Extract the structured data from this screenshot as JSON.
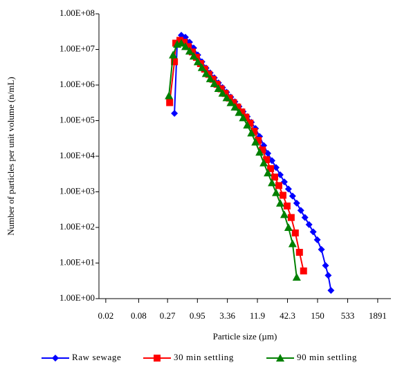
{
  "chart_data": {
    "type": "line",
    "xlabel": "Particle size (µm)",
    "ylabel": "Number of particles per unit volume (n/mL)",
    "xscale": "log",
    "yscale": "log",
    "xlim": [
      0.015,
      3300
    ],
    "ylim": [
      1,
      100000000
    ],
    "xticks": [
      0.02,
      0.08,
      0.27,
      0.95,
      3.36,
      11.9,
      42.3,
      150,
      533,
      1891
    ],
    "yticks": [
      {
        "value": 1,
        "label": "1.00E+00"
      },
      {
        "value": 10,
        "label": "1.00E+01"
      },
      {
        "value": 100,
        "label": "1.00E+02"
      },
      {
        "value": 1000,
        "label": "1.00E+03"
      },
      {
        "value": 10000,
        "label": "1.00E+04"
      },
      {
        "value": 100000,
        "label": "1.00E+05"
      },
      {
        "value": 1000000,
        "label": "1.00E+06"
      },
      {
        "value": 10000000,
        "label": "1.00E+07"
      },
      {
        "value": 100000000,
        "label": "1.00E+08"
      }
    ],
    "legend": "bottom",
    "series": [
      {
        "name": "Raw sewage",
        "color": "#0000ff",
        "marker": "diamond",
        "x": [
          0.361,
          0.405,
          0.482,
          0.573,
          0.682,
          0.811,
          0.965,
          1.148,
          1.366,
          1.625,
          1.933,
          2.3,
          2.735,
          3.254,
          3.871,
          4.605,
          5.478,
          6.517,
          7.752,
          9.222,
          10.97,
          13.05,
          15.53,
          18.47,
          21.97,
          26.14,
          31.09,
          36.99,
          44.0,
          52.34,
          62.27,
          74.07,
          88.12,
          104.8,
          124.7,
          148.3,
          176.4,
          209.9,
          235,
          264
        ],
        "values": [
          160000,
          15000000,
          25000000,
          22000000,
          16000000,
          11000000,
          7000000,
          4500000,
          3000000,
          2200000,
          1600000,
          1150000,
          850000,
          630000,
          460000,
          340000,
          250000,
          180000,
          130000,
          90000,
          60000,
          36000,
          20000,
          12000,
          7500,
          4800,
          3000,
          1900,
          1200,
          760,
          480,
          300,
          190,
          120,
          75,
          45,
          24,
          8.5,
          4.5,
          1.7
        ]
      },
      {
        "name": "30 min settling",
        "color": "#ff0000",
        "marker": "square",
        "x": [
          0.295,
          0.361,
          0.382,
          0.455,
          0.541,
          0.644,
          0.766,
          0.911,
          1.084,
          1.289,
          1.534,
          1.824,
          2.171,
          2.581,
          3.071,
          3.653,
          4.346,
          5.17,
          6.151,
          7.316,
          8.704,
          10.35,
          12.32,
          14.66,
          17.43,
          20.74,
          24.67,
          29.34,
          34.91,
          41.53,
          49.4,
          58.77,
          69.91,
          83.17
        ],
        "values": [
          320000,
          4500000,
          15000000,
          18000000,
          16000000,
          12000000,
          8500000,
          6000000,
          4000000,
          2800000,
          2000000,
          1450000,
          1050000,
          780000,
          580000,
          430000,
          320000,
          240000,
          175000,
          125000,
          85000,
          50000,
          28000,
          15000,
          8000,
          4500,
          2600,
          1500,
          800,
          400,
          190,
          70,
          20,
          6
        ]
      },
      {
        "name": "90 min settling",
        "color": "#008000",
        "marker": "triangle",
        "x": [
          0.286,
          0.34,
          0.405,
          0.482,
          0.573,
          0.682,
          0.811,
          0.965,
          1.148,
          1.366,
          1.625,
          1.933,
          2.3,
          2.735,
          3.254,
          3.871,
          4.605,
          5.478,
          6.517,
          7.752,
          9.222,
          10.97,
          13.05,
          15.53,
          18.47,
          21.97,
          26.14,
          31.09,
          36.99,
          44.0,
          52.34,
          62.27
        ],
        "values": [
          500000,
          7000000,
          14000000,
          15000000,
          12000000,
          9000000,
          6500000,
          4500000,
          3100000,
          2100000,
          1500000,
          1100000,
          800000,
          590000,
          440000,
          320000,
          240000,
          170000,
          120000,
          75000,
          45000,
          25000,
          13000,
          6500,
          3400,
          1800,
          950,
          480,
          230,
          100,
          35,
          4
        ]
      }
    ]
  }
}
